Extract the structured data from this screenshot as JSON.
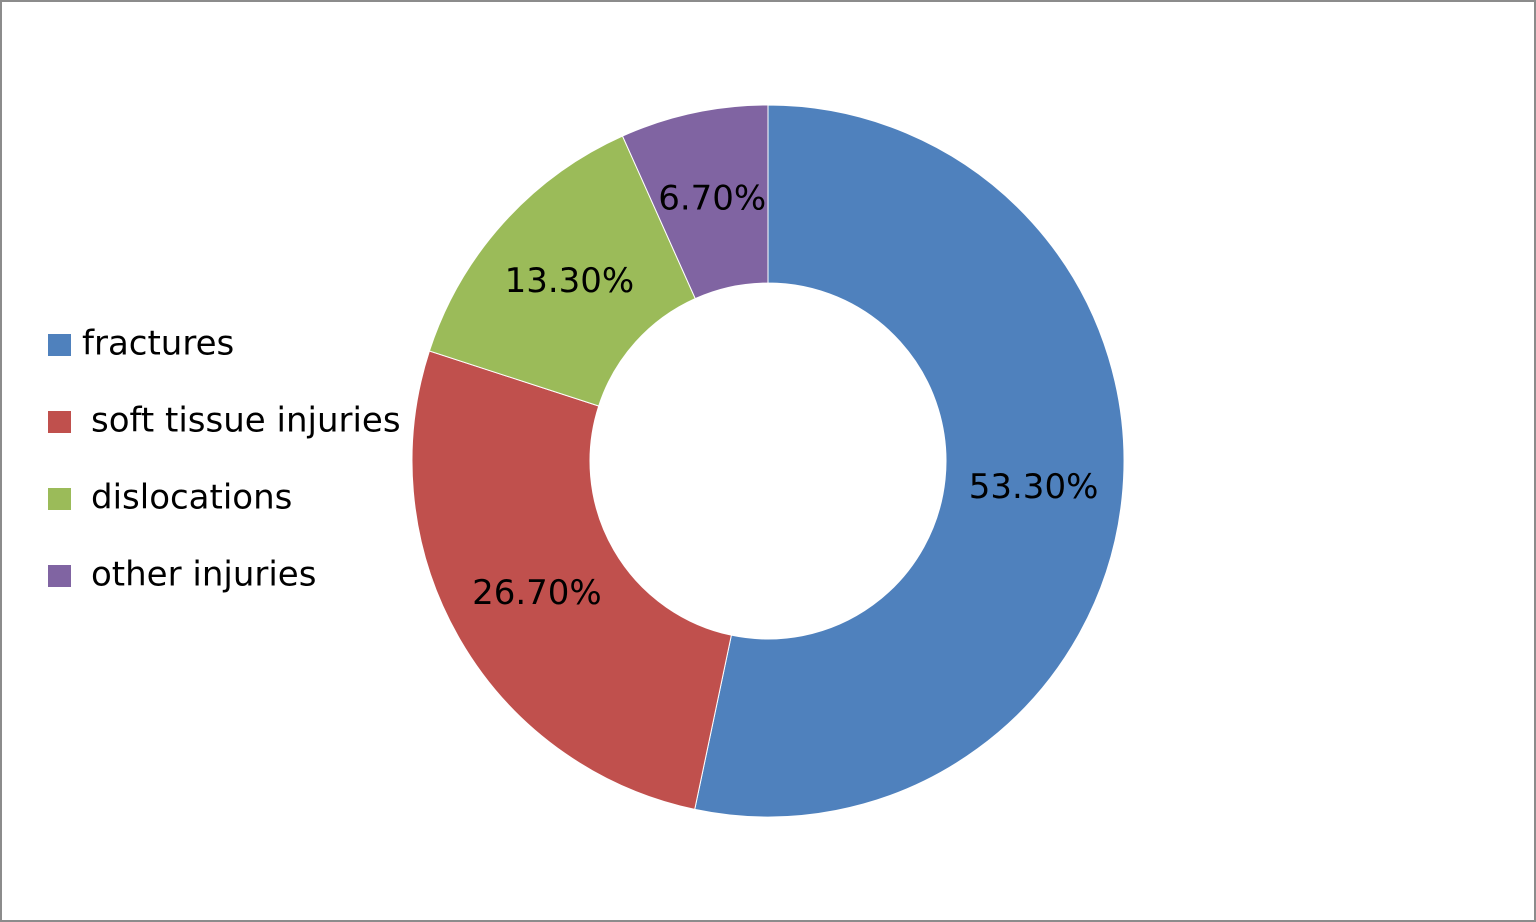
{
  "chart_data": {
    "type": "donut",
    "categories": [
      "fractures",
      "soft tissue injuries",
      "dislocations",
      "other injuries"
    ],
    "values": [
      53.3,
      26.7,
      13.3,
      6.7
    ],
    "value_labels": [
      "53.30%",
      "26.70%",
      "13.30%",
      "6.70%"
    ],
    "colors": [
      "#4f81bd",
      "#c0504d",
      "#9bbb59",
      "#8064a2"
    ],
    "legend": "left"
  }
}
